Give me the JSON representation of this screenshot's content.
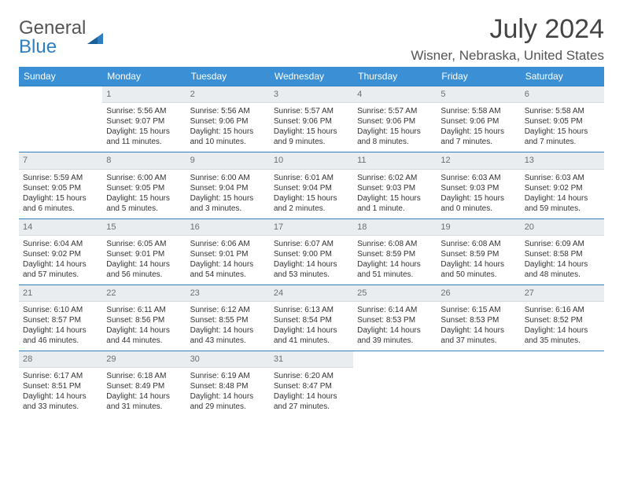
{
  "brand": {
    "general": "General",
    "blue": "Blue"
  },
  "title": {
    "month_year": "July 2024",
    "location": "Wisner, Nebraska, United States"
  },
  "colors": {
    "header_bg": "#3b8fd4",
    "header_border": "#2f7fbf",
    "daynum_bg": "#e9edef",
    "daynum_color": "#6a6f73",
    "text": "#333333"
  },
  "weekdays": [
    "Sunday",
    "Monday",
    "Tuesday",
    "Wednesday",
    "Thursday",
    "Friday",
    "Saturday"
  ],
  "weeks": [
    [
      {
        "day": "",
        "sunrise": "",
        "sunset": "",
        "daylight1": "",
        "daylight2": ""
      },
      {
        "day": "1",
        "sunrise": "Sunrise: 5:56 AM",
        "sunset": "Sunset: 9:07 PM",
        "daylight1": "Daylight: 15 hours",
        "daylight2": "and 11 minutes."
      },
      {
        "day": "2",
        "sunrise": "Sunrise: 5:56 AM",
        "sunset": "Sunset: 9:06 PM",
        "daylight1": "Daylight: 15 hours",
        "daylight2": "and 10 minutes."
      },
      {
        "day": "3",
        "sunrise": "Sunrise: 5:57 AM",
        "sunset": "Sunset: 9:06 PM",
        "daylight1": "Daylight: 15 hours",
        "daylight2": "and 9 minutes."
      },
      {
        "day": "4",
        "sunrise": "Sunrise: 5:57 AM",
        "sunset": "Sunset: 9:06 PM",
        "daylight1": "Daylight: 15 hours",
        "daylight2": "and 8 minutes."
      },
      {
        "day": "5",
        "sunrise": "Sunrise: 5:58 AM",
        "sunset": "Sunset: 9:06 PM",
        "daylight1": "Daylight: 15 hours",
        "daylight2": "and 7 minutes."
      },
      {
        "day": "6",
        "sunrise": "Sunrise: 5:58 AM",
        "sunset": "Sunset: 9:05 PM",
        "daylight1": "Daylight: 15 hours",
        "daylight2": "and 7 minutes."
      }
    ],
    [
      {
        "day": "7",
        "sunrise": "Sunrise: 5:59 AM",
        "sunset": "Sunset: 9:05 PM",
        "daylight1": "Daylight: 15 hours",
        "daylight2": "and 6 minutes."
      },
      {
        "day": "8",
        "sunrise": "Sunrise: 6:00 AM",
        "sunset": "Sunset: 9:05 PM",
        "daylight1": "Daylight: 15 hours",
        "daylight2": "and 5 minutes."
      },
      {
        "day": "9",
        "sunrise": "Sunrise: 6:00 AM",
        "sunset": "Sunset: 9:04 PM",
        "daylight1": "Daylight: 15 hours",
        "daylight2": "and 3 minutes."
      },
      {
        "day": "10",
        "sunrise": "Sunrise: 6:01 AM",
        "sunset": "Sunset: 9:04 PM",
        "daylight1": "Daylight: 15 hours",
        "daylight2": "and 2 minutes."
      },
      {
        "day": "11",
        "sunrise": "Sunrise: 6:02 AM",
        "sunset": "Sunset: 9:03 PM",
        "daylight1": "Daylight: 15 hours",
        "daylight2": "and 1 minute."
      },
      {
        "day": "12",
        "sunrise": "Sunrise: 6:03 AM",
        "sunset": "Sunset: 9:03 PM",
        "daylight1": "Daylight: 15 hours",
        "daylight2": "and 0 minutes."
      },
      {
        "day": "13",
        "sunrise": "Sunrise: 6:03 AM",
        "sunset": "Sunset: 9:02 PM",
        "daylight1": "Daylight: 14 hours",
        "daylight2": "and 59 minutes."
      }
    ],
    [
      {
        "day": "14",
        "sunrise": "Sunrise: 6:04 AM",
        "sunset": "Sunset: 9:02 PM",
        "daylight1": "Daylight: 14 hours",
        "daylight2": "and 57 minutes."
      },
      {
        "day": "15",
        "sunrise": "Sunrise: 6:05 AM",
        "sunset": "Sunset: 9:01 PM",
        "daylight1": "Daylight: 14 hours",
        "daylight2": "and 56 minutes."
      },
      {
        "day": "16",
        "sunrise": "Sunrise: 6:06 AM",
        "sunset": "Sunset: 9:01 PM",
        "daylight1": "Daylight: 14 hours",
        "daylight2": "and 54 minutes."
      },
      {
        "day": "17",
        "sunrise": "Sunrise: 6:07 AM",
        "sunset": "Sunset: 9:00 PM",
        "daylight1": "Daylight: 14 hours",
        "daylight2": "and 53 minutes."
      },
      {
        "day": "18",
        "sunrise": "Sunrise: 6:08 AM",
        "sunset": "Sunset: 8:59 PM",
        "daylight1": "Daylight: 14 hours",
        "daylight2": "and 51 minutes."
      },
      {
        "day": "19",
        "sunrise": "Sunrise: 6:08 AM",
        "sunset": "Sunset: 8:59 PM",
        "daylight1": "Daylight: 14 hours",
        "daylight2": "and 50 minutes."
      },
      {
        "day": "20",
        "sunrise": "Sunrise: 6:09 AM",
        "sunset": "Sunset: 8:58 PM",
        "daylight1": "Daylight: 14 hours",
        "daylight2": "and 48 minutes."
      }
    ],
    [
      {
        "day": "21",
        "sunrise": "Sunrise: 6:10 AM",
        "sunset": "Sunset: 8:57 PM",
        "daylight1": "Daylight: 14 hours",
        "daylight2": "and 46 minutes."
      },
      {
        "day": "22",
        "sunrise": "Sunrise: 6:11 AM",
        "sunset": "Sunset: 8:56 PM",
        "daylight1": "Daylight: 14 hours",
        "daylight2": "and 44 minutes."
      },
      {
        "day": "23",
        "sunrise": "Sunrise: 6:12 AM",
        "sunset": "Sunset: 8:55 PM",
        "daylight1": "Daylight: 14 hours",
        "daylight2": "and 43 minutes."
      },
      {
        "day": "24",
        "sunrise": "Sunrise: 6:13 AM",
        "sunset": "Sunset: 8:54 PM",
        "daylight1": "Daylight: 14 hours",
        "daylight2": "and 41 minutes."
      },
      {
        "day": "25",
        "sunrise": "Sunrise: 6:14 AM",
        "sunset": "Sunset: 8:53 PM",
        "daylight1": "Daylight: 14 hours",
        "daylight2": "and 39 minutes."
      },
      {
        "day": "26",
        "sunrise": "Sunrise: 6:15 AM",
        "sunset": "Sunset: 8:53 PM",
        "daylight1": "Daylight: 14 hours",
        "daylight2": "and 37 minutes."
      },
      {
        "day": "27",
        "sunrise": "Sunrise: 6:16 AM",
        "sunset": "Sunset: 8:52 PM",
        "daylight1": "Daylight: 14 hours",
        "daylight2": "and 35 minutes."
      }
    ],
    [
      {
        "day": "28",
        "sunrise": "Sunrise: 6:17 AM",
        "sunset": "Sunset: 8:51 PM",
        "daylight1": "Daylight: 14 hours",
        "daylight2": "and 33 minutes."
      },
      {
        "day": "29",
        "sunrise": "Sunrise: 6:18 AM",
        "sunset": "Sunset: 8:49 PM",
        "daylight1": "Daylight: 14 hours",
        "daylight2": "and 31 minutes."
      },
      {
        "day": "30",
        "sunrise": "Sunrise: 6:19 AM",
        "sunset": "Sunset: 8:48 PM",
        "daylight1": "Daylight: 14 hours",
        "daylight2": "and 29 minutes."
      },
      {
        "day": "31",
        "sunrise": "Sunrise: 6:20 AM",
        "sunset": "Sunset: 8:47 PM",
        "daylight1": "Daylight: 14 hours",
        "daylight2": "and 27 minutes."
      },
      {
        "day": "",
        "sunrise": "",
        "sunset": "",
        "daylight1": "",
        "daylight2": ""
      },
      {
        "day": "",
        "sunrise": "",
        "sunset": "",
        "daylight1": "",
        "daylight2": ""
      },
      {
        "day": "",
        "sunrise": "",
        "sunset": "",
        "daylight1": "",
        "daylight2": ""
      }
    ]
  ]
}
